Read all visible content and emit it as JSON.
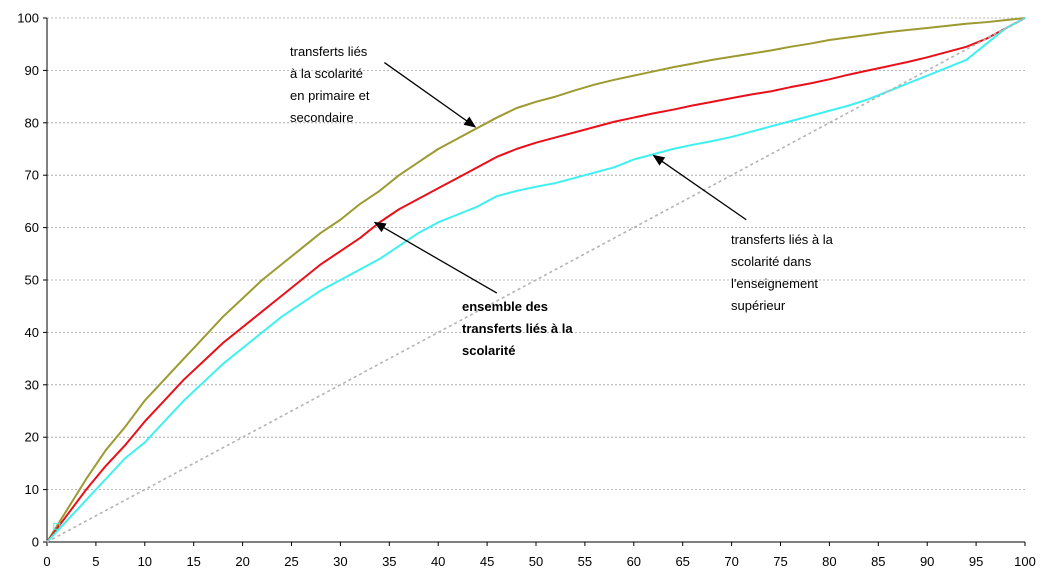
{
  "chart_data": {
    "type": "line",
    "xlim": [
      0,
      100
    ],
    "ylim": [
      0,
      100
    ],
    "x_ticks": [
      "0",
      "5",
      "10",
      "15",
      "20",
      "25",
      "30",
      "35",
      "40",
      "45",
      "50",
      "55",
      "60",
      "65",
      "70",
      "75",
      "80",
      "85",
      "90",
      "95",
      "100"
    ],
    "y_ticks": [
      "0",
      "10",
      "20",
      "30",
      "40",
      "50",
      "60",
      "70",
      "80",
      "90",
      "100"
    ],
    "grid": "horizontal-dashed",
    "series": [
      {
        "color": "#9c9a30",
        "x": [
          0,
          2,
          4,
          6,
          8,
          10,
          12,
          14,
          16,
          18,
          20,
          22,
          24,
          26,
          28,
          30,
          32,
          34,
          36,
          38,
          40,
          42,
          44,
          46,
          48,
          50,
          52,
          54,
          56,
          58,
          60,
          62,
          64,
          66,
          68,
          70,
          72,
          74,
          76,
          78,
          80,
          82,
          84,
          86,
          88,
          90,
          92,
          94,
          96,
          98,
          100
        ],
        "y": [
          0,
          6,
          12,
          17.5,
          22,
          27,
          31,
          35,
          39,
          43,
          46.5,
          50,
          53,
          56,
          59,
          61.5,
          64.5,
          67,
          70,
          72.5,
          75,
          77,
          79,
          81,
          82.8,
          84,
          85,
          86.2,
          87.3,
          88.2,
          89,
          89.8,
          90.6,
          91.3,
          92,
          92.6,
          93.2,
          93.8,
          94.5,
          95.1,
          95.8,
          96.3,
          96.8,
          97.3,
          97.7,
          98.1,
          98.5,
          98.9,
          99.2,
          99.6,
          100
        ]
      },
      {
        "color": "#e8101a",
        "x": [
          0,
          2,
          4,
          6,
          8,
          10,
          12,
          14,
          16,
          18,
          20,
          22,
          24,
          26,
          28,
          30,
          32,
          34,
          36,
          38,
          40,
          42,
          44,
          46,
          48,
          50,
          52,
          54,
          56,
          58,
          60,
          62,
          64,
          66,
          68,
          70,
          72,
          74,
          76,
          78,
          80,
          82,
          84,
          86,
          88,
          90,
          92,
          94,
          96,
          98,
          100
        ],
        "y": [
          0,
          5,
          10,
          14.5,
          18.5,
          23,
          27,
          31,
          34.5,
          38,
          41,
          44,
          47,
          50,
          53,
          55.5,
          58,
          61,
          63.5,
          65.5,
          67.5,
          69.5,
          71.5,
          73.5,
          75,
          76.2,
          77.2,
          78.2,
          79.2,
          80.2,
          81,
          81.8,
          82.5,
          83.3,
          84,
          84.7,
          85.4,
          86,
          86.8,
          87.5,
          88.3,
          89.2,
          90,
          90.8,
          91.6,
          92.5,
          93.5,
          94.5,
          96,
          98,
          100
        ]
      },
      {
        "color": "#3ff0f0",
        "x": [
          0,
          2,
          4,
          6,
          8,
          10,
          12,
          14,
          16,
          18,
          20,
          22,
          24,
          26,
          28,
          30,
          32,
          34,
          36,
          38,
          40,
          42,
          44,
          46,
          48,
          50,
          52,
          54,
          56,
          58,
          60,
          62,
          64,
          66,
          68,
          70,
          72,
          74,
          76,
          78,
          80,
          82,
          84,
          86,
          88,
          90,
          92,
          94,
          96,
          98,
          100
        ],
        "y": [
          0,
          4,
          8,
          12,
          16,
          19,
          23,
          27,
          30.5,
          34,
          37,
          40,
          43,
          45.5,
          48,
          50,
          52,
          54,
          56.5,
          59,
          61,
          62.5,
          64,
          66,
          67,
          67.8,
          68.5,
          69.5,
          70.5,
          71.5,
          73,
          74,
          75,
          75.8,
          76.5,
          77.3,
          78.3,
          79.3,
          80.3,
          81.3,
          82.3,
          83.3,
          84.5,
          86,
          87.5,
          89,
          90.5,
          92,
          95,
          98,
          100
        ]
      },
      {
        "color": "#b4b4b4",
        "style": "dashed",
        "x": [
          0,
          100
        ],
        "y": [
          0,
          100
        ]
      }
    ],
    "annotations": [
      {
        "name": "primaire-secondaire",
        "lines": [
          "transferts liés",
          "à la scolarité",
          "en primaire et",
          "secondaire"
        ],
        "bold": false,
        "arrow_from": [
          34.5,
          91.5
        ],
        "arrow_to": [
          43.8,
          79.2
        ]
      },
      {
        "name": "ensemble",
        "lines": [
          "ensemble des",
          "transferts liés à la",
          "scolarité"
        ],
        "bold": true,
        "arrow_from": [
          46,
          47.5
        ],
        "arrow_to": [
          33.5,
          61
        ]
      },
      {
        "name": "superieur",
        "lines": [
          "transferts liés à la",
          "scolarité dans",
          "l'enseignement",
          "supérieur"
        ],
        "bold": false,
        "arrow_from": [
          71.5,
          61.5
        ],
        "arrow_to": [
          62,
          73.8
        ]
      }
    ]
  }
}
